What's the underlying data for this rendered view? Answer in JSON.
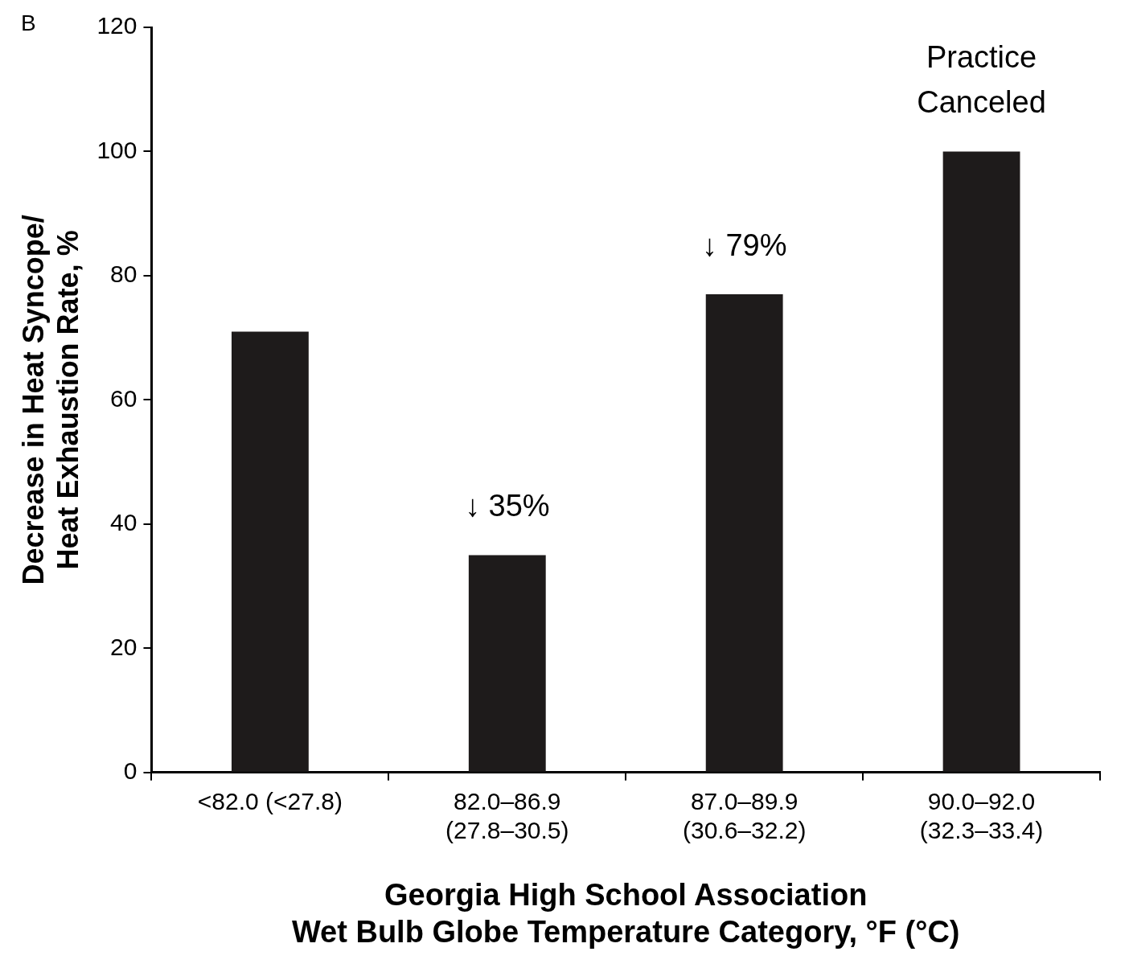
{
  "chart_data": {
    "type": "bar",
    "categories": [
      "<82.0 (<27.8)",
      "82.0–86.9\n(27.8–30.5)",
      "87.0–89.9\n(30.6–32.2)",
      "90.0–92.0\n(32.3–33.4)"
    ],
    "values": [
      71,
      35,
      77,
      100
    ],
    "color": "#1e1b1b",
    "xlabel": "Georgia High School Association\nWet Bulb Globe Temperature Category, °F (°C)",
    "ylabel": "Decrease in Heat Syncope/\nHeat Exhaustion Rate, %",
    "ylim": [
      0,
      120
    ],
    "yticks": [
      0,
      20,
      40,
      60,
      80,
      100,
      120
    ],
    "grid": false,
    "legend": false,
    "annotations": [
      "B",
      {
        "text": "↓ 35%",
        "x": "82.0–86.9\n(27.8–30.5)",
        "y": 35
      },
      {
        "text": "↓ 79%",
        "x": "87.0–89.9\n(30.6–32.2)",
        "y": 77
      },
      {
        "text": "Practice\nCanceled",
        "x": "90.0–92.0\n(32.3–33.4)",
        "y": 100
      }
    ]
  }
}
